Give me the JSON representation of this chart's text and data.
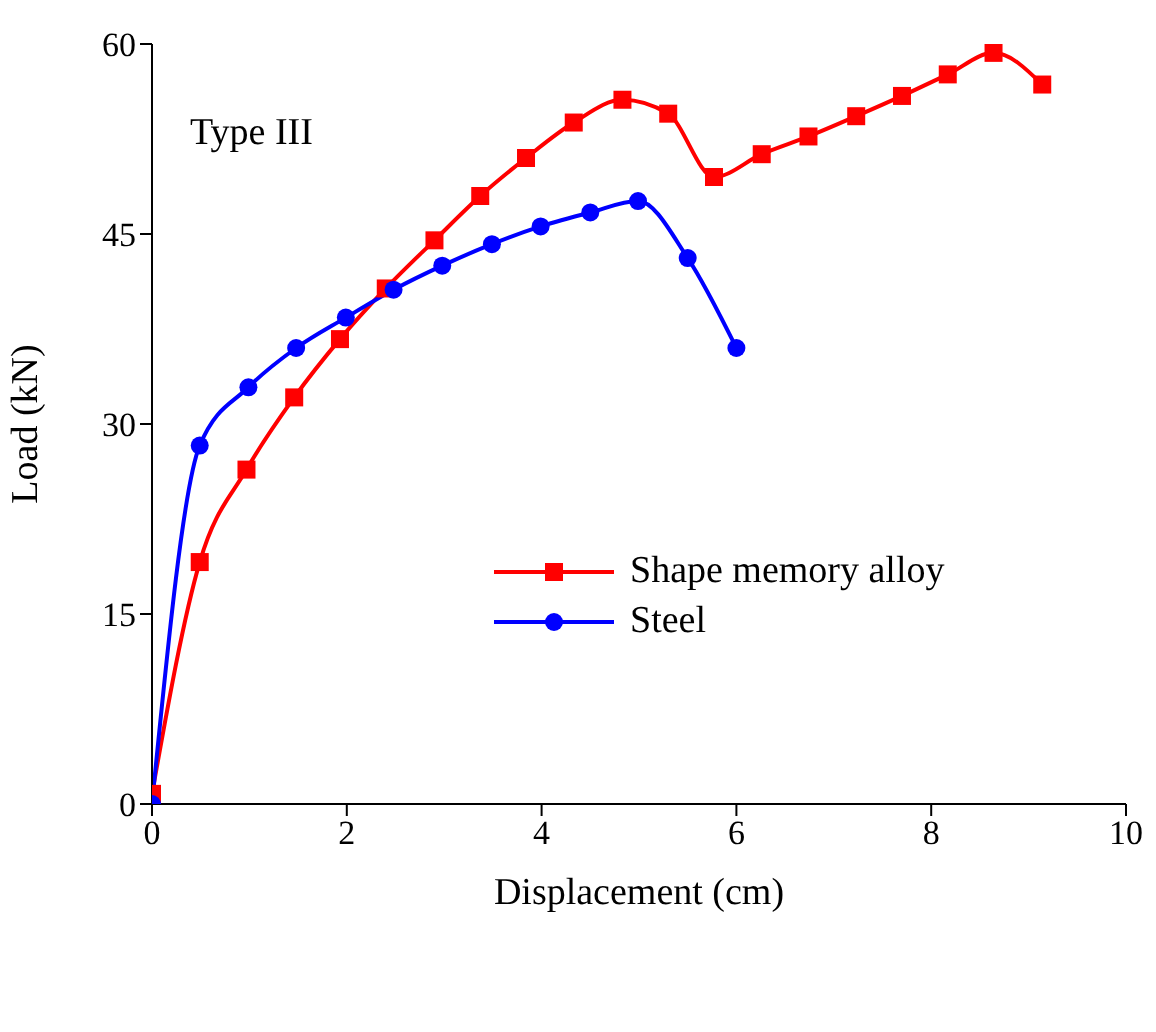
{
  "chart_data": {
    "type": "line",
    "xlabel": "Displacement (cm)",
    "ylabel": "Load (kN)",
    "annotations": [
      "Type III"
    ],
    "xlim": [
      0,
      10
    ],
    "xticks": [
      0,
      2,
      4,
      6,
      8,
      10
    ],
    "ylim": [
      0,
      60
    ],
    "yticks": [
      0,
      15,
      30,
      45,
      60
    ],
    "legend": "right",
    "series": [
      {
        "name": "Shape memory alloy",
        "color": "#ff0000",
        "marker": "square",
        "x": [
          0,
          0.49,
          0.97,
          1.46,
          1.93,
          2.4,
          2.9,
          3.37,
          3.84,
          4.33,
          4.83,
          5.3,
          5.77,
          6.26,
          6.74,
          7.23,
          7.7,
          8.17,
          8.64,
          9.14
        ],
        "values": [
          0.8,
          19.1,
          26.4,
          32.1,
          36.7,
          40.7,
          44.5,
          48.0,
          51.0,
          53.8,
          55.6,
          54.5,
          49.5,
          51.3,
          52.7,
          54.3,
          55.9,
          57.6,
          59.3,
          56.8
        ]
      },
      {
        "name": "Steel",
        "color": "#0000ff",
        "marker": "circle",
        "x": [
          0,
          0.49,
          0.99,
          1.48,
          1.99,
          2.48,
          2.98,
          3.49,
          3.99,
          4.5,
          4.99,
          5.5,
          6.0
        ],
        "values": [
          0,
          28.3,
          32.9,
          36.0,
          38.4,
          40.6,
          42.5,
          44.2,
          45.6,
          46.7,
          47.6,
          43.1,
          36.0
        ]
      }
    ]
  }
}
